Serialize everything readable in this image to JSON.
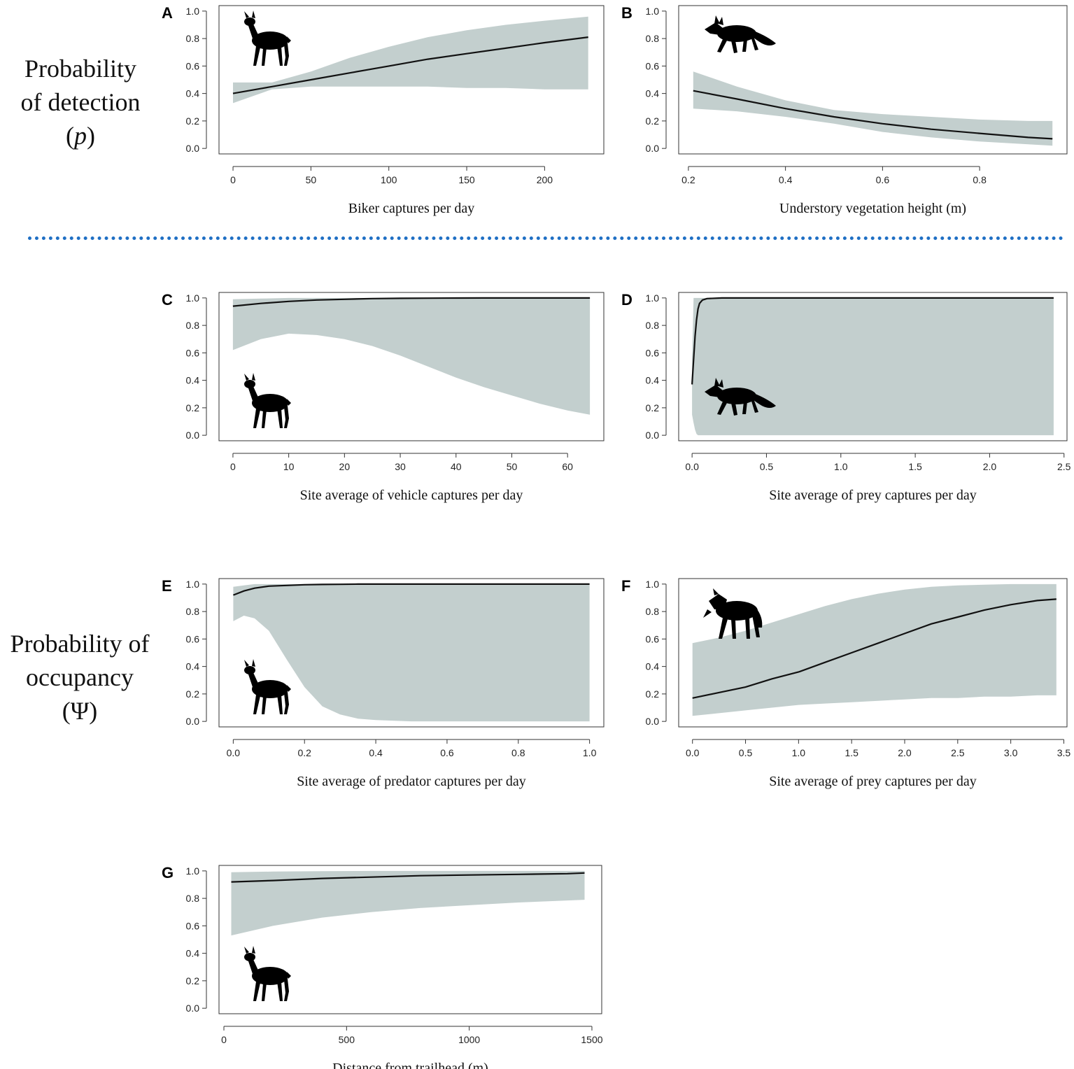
{
  "row_labels": {
    "detection": {
      "line1": "Probability",
      "line2": "of detection",
      "line3_open": "(",
      "line3_symbol": "p",
      "line3_close": ")"
    },
    "occupancy": {
      "line1": "Probability of",
      "line2": "occupancy",
      "line3": "(Ψ)"
    }
  },
  "colors": {
    "band": "#c3cfce",
    "line": "#111111",
    "axis": "#333333",
    "divider": "#1f6fc4"
  },
  "chart_data": [
    {
      "panel": "A",
      "type": "line",
      "animal": "deer",
      "animal_placement": "top-left",
      "xlabel": "Biker captures per day",
      "ylabel": "",
      "xlim": [
        -9,
        238
      ],
      "ylim": [
        -0.04,
        1.04
      ],
      "xticks": [
        0,
        50,
        100,
        150,
        200
      ],
      "xtick_labels": [
        "0",
        "50",
        "100",
        "150",
        "200"
      ],
      "yticks": [
        0,
        0.2,
        0.4,
        0.6,
        0.8,
        1.0
      ],
      "ytick_labels": [
        "0.0",
        "0.2",
        "0.4",
        "0.6",
        "0.8",
        "1.0"
      ],
      "x": [
        0,
        25,
        50,
        75,
        100,
        125,
        150,
        175,
        200,
        228
      ],
      "y": [
        0.4,
        0.45,
        0.5,
        0.55,
        0.6,
        0.65,
        0.69,
        0.73,
        0.77,
        0.81
      ],
      "lower": [
        0.33,
        0.43,
        0.45,
        0.45,
        0.45,
        0.45,
        0.44,
        0.44,
        0.43,
        0.43
      ],
      "upper": [
        0.48,
        0.48,
        0.56,
        0.66,
        0.74,
        0.81,
        0.86,
        0.9,
        0.93,
        0.96
      ]
    },
    {
      "panel": "B",
      "type": "line",
      "animal": "fox",
      "animal_placement": "top-left",
      "xlabel": "Understory vegetation height (m)",
      "ylabel": "",
      "xlim": [
        0.18,
        0.98
      ],
      "ylim": [
        -0.04,
        1.04
      ],
      "xticks": [
        0.2,
        0.4,
        0.6,
        0.8
      ],
      "xtick_labels": [
        "0.2",
        "0.4",
        "0.6",
        "0.8"
      ],
      "yticks": [
        0,
        0.2,
        0.4,
        0.6,
        0.8,
        1.0
      ],
      "ytick_labels": [
        "0.0",
        "0.2",
        "0.4",
        "0.6",
        "0.8",
        "1.0"
      ],
      "x": [
        0.21,
        0.3,
        0.4,
        0.5,
        0.6,
        0.7,
        0.8,
        0.9,
        0.95
      ],
      "y": [
        0.42,
        0.36,
        0.29,
        0.23,
        0.18,
        0.14,
        0.11,
        0.08,
        0.07
      ],
      "lower": [
        0.29,
        0.27,
        0.23,
        0.18,
        0.12,
        0.08,
        0.05,
        0.03,
        0.02
      ],
      "upper": [
        0.56,
        0.45,
        0.35,
        0.28,
        0.25,
        0.23,
        0.21,
        0.2,
        0.2
      ]
    },
    {
      "panel": "C",
      "type": "line",
      "animal": "deer",
      "animal_placement": "bottom-left",
      "xlabel": "Site average of vehicle captures per day",
      "ylabel": "",
      "xlim": [
        -2.5,
        66.5
      ],
      "ylim": [
        -0.04,
        1.04
      ],
      "xticks": [
        0,
        10,
        20,
        30,
        40,
        50,
        60
      ],
      "xtick_labels": [
        "0",
        "10",
        "20",
        "30",
        "40",
        "50",
        "60"
      ],
      "yticks": [
        0,
        0.2,
        0.4,
        0.6,
        0.8,
        1.0
      ],
      "ytick_labels": [
        "0.0",
        "0.2",
        "0.4",
        "0.6",
        "0.8",
        "1.0"
      ],
      "x": [
        0,
        5,
        10,
        15,
        20,
        25,
        30,
        35,
        40,
        45,
        50,
        55,
        60,
        64
      ],
      "y": [
        0.94,
        0.96,
        0.975,
        0.985,
        0.99,
        0.995,
        0.997,
        0.998,
        0.999,
        1.0,
        1.0,
        1.0,
        1.0,
        1.0
      ],
      "lower": [
        0.62,
        0.7,
        0.74,
        0.73,
        0.7,
        0.65,
        0.58,
        0.5,
        0.42,
        0.35,
        0.29,
        0.23,
        0.18,
        0.15
      ],
      "upper": [
        0.99,
        0.995,
        1.0,
        1.0,
        1.0,
        1.0,
        1.0,
        1.0,
        1.0,
        1.0,
        1.0,
        1.0,
        1.0,
        1.0
      ]
    },
    {
      "panel": "D",
      "type": "line",
      "animal": "fox",
      "animal_placement": "bottom-left",
      "xlabel": "Site average of prey captures per day",
      "ylabel": "",
      "xlim": [
        -0.09,
        2.52
      ],
      "ylim": [
        -0.04,
        1.04
      ],
      "xticks": [
        0,
        0.5,
        1.0,
        1.5,
        2.0,
        2.5
      ],
      "xtick_labels": [
        "0.0",
        "0.5",
        "1.0",
        "1.5",
        "2.0",
        "2.5"
      ],
      "yticks": [
        0,
        0.2,
        0.4,
        0.6,
        0.8,
        1.0
      ],
      "ytick_labels": [
        "0.0",
        "0.2",
        "0.4",
        "0.6",
        "0.8",
        "1.0"
      ],
      "x": [
        0.0,
        0.01,
        0.02,
        0.03,
        0.04,
        0.05,
        0.07,
        0.1,
        0.2,
        0.5,
        1.0,
        1.5,
        2.0,
        2.43
      ],
      "y": [
        0.37,
        0.55,
        0.72,
        0.84,
        0.92,
        0.96,
        0.985,
        0.995,
        1.0,
        1.0,
        1.0,
        1.0,
        1.0,
        1.0
      ],
      "lower": [
        0.15,
        0.09,
        0.04,
        0.01,
        0.0,
        0.0,
        0.0,
        0.0,
        0.0,
        0.0,
        0.0,
        0.0,
        0.0,
        0.0
      ],
      "upper": [
        0.55,
        1.0,
        1.0,
        1.0,
        1.0,
        1.0,
        1.0,
        1.0,
        1.0,
        1.0,
        1.0,
        1.0,
        1.0,
        1.0
      ]
    },
    {
      "panel": "E",
      "type": "line",
      "animal": "deer",
      "animal_placement": "bottom-left",
      "xlabel": "Site average of predator captures per day",
      "ylabel": "",
      "xlim": [
        -0.04,
        1.04
      ],
      "ylim": [
        -0.04,
        1.04
      ],
      "xticks": [
        0,
        0.2,
        0.4,
        0.6,
        0.8,
        1.0
      ],
      "xtick_labels": [
        "0.0",
        "0.2",
        "0.4",
        "0.6",
        "0.8",
        "1.0"
      ],
      "yticks": [
        0,
        0.2,
        0.4,
        0.6,
        0.8,
        1.0
      ],
      "ytick_labels": [
        "0.0",
        "0.2",
        "0.4",
        "0.6",
        "0.8",
        "1.0"
      ],
      "x": [
        0.0,
        0.03,
        0.06,
        0.1,
        0.15,
        0.2,
        0.25,
        0.3,
        0.35,
        0.4,
        0.5,
        0.6,
        0.8,
        1.0
      ],
      "y": [
        0.92,
        0.95,
        0.97,
        0.985,
        0.99,
        0.995,
        0.997,
        0.998,
        1.0,
        1.0,
        1.0,
        1.0,
        1.0,
        1.0
      ],
      "lower": [
        0.73,
        0.77,
        0.75,
        0.66,
        0.45,
        0.25,
        0.11,
        0.05,
        0.02,
        0.01,
        0.0,
        0.0,
        0.0,
        0.0
      ],
      "upper": [
        0.98,
        0.99,
        1.0,
        1.0,
        1.0,
        1.0,
        1.0,
        1.0,
        1.0,
        1.0,
        1.0,
        1.0,
        1.0,
        1.0
      ]
    },
    {
      "panel": "F",
      "type": "line",
      "animal": "coyote",
      "animal_placement": "top-left",
      "xlabel": "Site average of prey captures per day",
      "ylabel": "",
      "xlim": [
        -0.13,
        3.53
      ],
      "ylim": [
        -0.04,
        1.04
      ],
      "xticks": [
        0,
        0.5,
        1.0,
        1.5,
        2.0,
        2.5,
        3.0,
        3.5
      ],
      "xtick_labels": [
        "0.0",
        "0.5",
        "1.0",
        "1.5",
        "2.0",
        "2.5",
        "3.0",
        "3.5"
      ],
      "yticks": [
        0,
        0.2,
        0.4,
        0.6,
        0.8,
        1.0
      ],
      "ytick_labels": [
        "0.0",
        "0.2",
        "0.4",
        "0.6",
        "0.8",
        "1.0"
      ],
      "x": [
        0.0,
        0.25,
        0.5,
        0.75,
        1.0,
        1.25,
        1.5,
        1.75,
        2.0,
        2.25,
        2.5,
        2.75,
        3.0,
        3.25,
        3.43
      ],
      "y": [
        0.17,
        0.21,
        0.25,
        0.31,
        0.36,
        0.43,
        0.5,
        0.57,
        0.64,
        0.71,
        0.76,
        0.81,
        0.85,
        0.88,
        0.89
      ],
      "lower": [
        0.04,
        0.06,
        0.08,
        0.1,
        0.12,
        0.13,
        0.14,
        0.15,
        0.16,
        0.17,
        0.17,
        0.18,
        0.18,
        0.19,
        0.19
      ],
      "upper": [
        0.57,
        0.61,
        0.66,
        0.72,
        0.78,
        0.84,
        0.89,
        0.93,
        0.96,
        0.98,
        0.99,
        0.995,
        1.0,
        1.0,
        1.0
      ]
    },
    {
      "panel": "G",
      "type": "line",
      "animal": "deer",
      "animal_placement": "bottom-left",
      "xlabel": "Distance from trailhead (m)",
      "ylabel": "",
      "xlim": [
        -20,
        1540
      ],
      "ylim": [
        -0.04,
        1.04
      ],
      "xticks": [
        0,
        500,
        1000,
        1500
      ],
      "xtick_labels": [
        "0",
        "500",
        "1000",
        "1500"
      ],
      "yticks": [
        0,
        0.2,
        0.4,
        0.6,
        0.8,
        1.0
      ],
      "ytick_labels": [
        "0.0",
        "0.2",
        "0.4",
        "0.6",
        "0.8",
        "1.0"
      ],
      "x": [
        30,
        200,
        400,
        600,
        800,
        1000,
        1200,
        1400,
        1470
      ],
      "y": [
        0.92,
        0.93,
        0.945,
        0.955,
        0.965,
        0.97,
        0.975,
        0.98,
        0.985
      ],
      "lower": [
        0.53,
        0.6,
        0.66,
        0.7,
        0.73,
        0.75,
        0.77,
        0.785,
        0.79
      ],
      "upper": [
        0.99,
        0.995,
        0.998,
        1.0,
        1.0,
        1.0,
        1.0,
        1.0,
        1.0
      ]
    }
  ]
}
